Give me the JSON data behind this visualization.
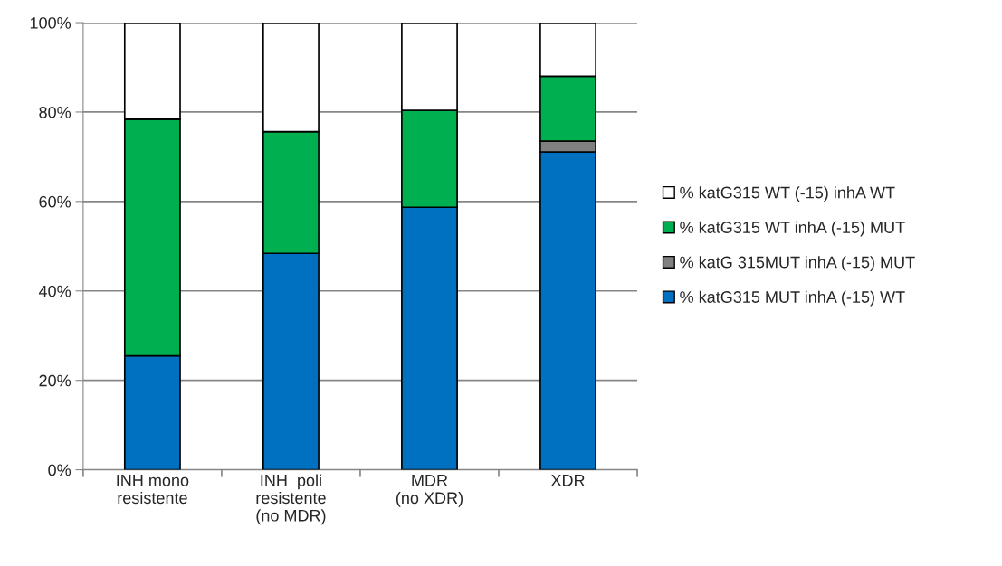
{
  "chart_data": {
    "type": "bar",
    "stacked": true,
    "categories": [
      "INH mono\nresistente",
      "INH  poli\nresistente\n(no MDR)",
      "MDR\n(no XDR)",
      "XDR"
    ],
    "series": [
      {
        "name": "% katG315 MUT inhA (-15) WT",
        "color": "#0070c0",
        "values": [
          25.5,
          48.4,
          58.7,
          71.1
        ]
      },
      {
        "name": "% katG 315MUT inhA (-15) MUT",
        "color": "#808080",
        "values": [
          0,
          0,
          0,
          2.4
        ]
      },
      {
        "name": "% katG315 WT inhA (-15) MUT",
        "color": "#00b050",
        "values": [
          52.9,
          27.2,
          21.7,
          14.5
        ]
      },
      {
        "name": "% katG315 WT (-15) inhA WT",
        "color": "#ffffff",
        "values": [
          21.6,
          24.4,
          19.6,
          12.0
        ]
      }
    ],
    "ylim": [
      0,
      100
    ],
    "yticks": [
      {
        "value": 0,
        "label": "0%"
      },
      {
        "value": 20,
        "label": "20%"
      },
      {
        "value": 40,
        "label": "40%"
      },
      {
        "value": 60,
        "label": "60%"
      },
      {
        "value": 80,
        "label": "80%"
      },
      {
        "value": 100,
        "label": "100%"
      }
    ],
    "grid": "y",
    "legend": "right"
  }
}
